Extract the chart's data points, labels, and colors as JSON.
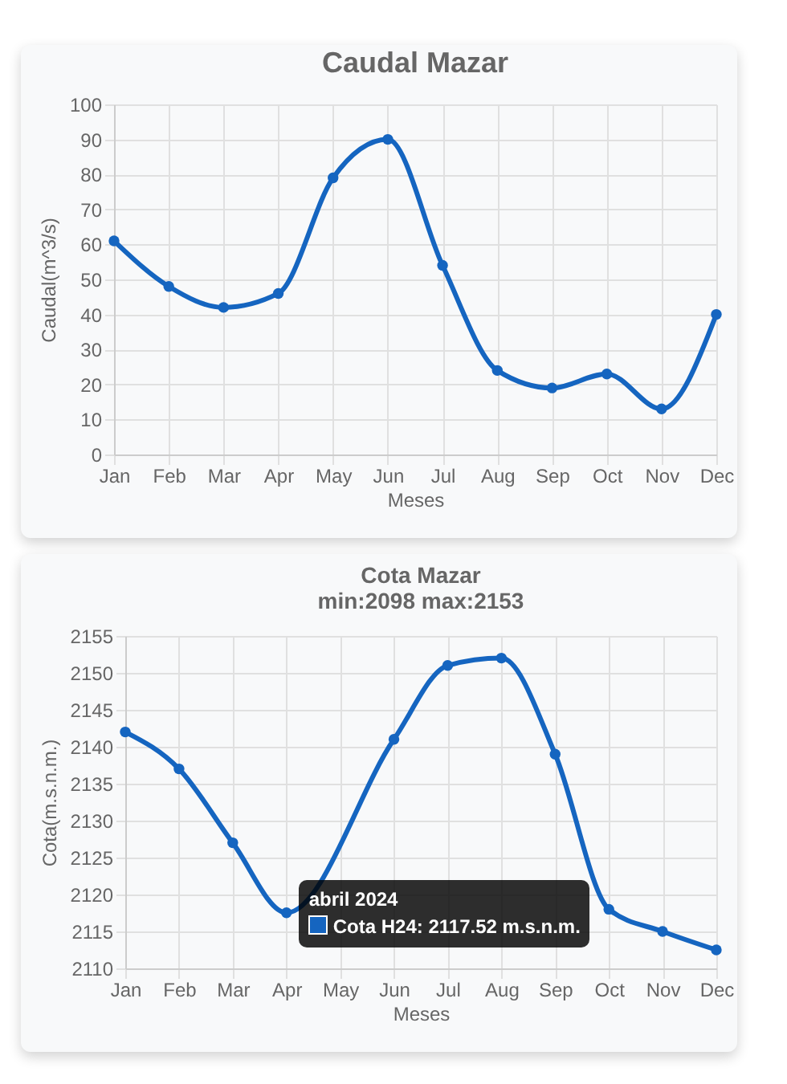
{
  "chart_data": [
    {
      "type": "line",
      "title": "Caudal Mazar",
      "xlabel": "Meses",
      "ylabel": "Caudal(m^3/s)",
      "categories": [
        "Jan",
        "Feb",
        "Mar",
        "Apr",
        "May",
        "Jun",
        "Jul",
        "Aug",
        "Sep",
        "Oct",
        "Nov",
        "Dec"
      ],
      "series": [
        {
          "color": "#1565c0",
          "values": [
            61,
            48,
            42,
            46,
            79,
            90,
            54,
            24,
            19,
            23,
            13,
            40
          ]
        }
      ],
      "ylim": [
        0,
        100
      ],
      "yticks": [
        0,
        10,
        20,
        30,
        40,
        50,
        60,
        70,
        80,
        90,
        100
      ],
      "grid": true,
      "marker": "circle",
      "line_style": "solid"
    },
    {
      "type": "line",
      "title": "Cota Mazar",
      "subtitle": "min:2098     max:2153",
      "xlabel": "Meses",
      "ylabel": "Cota(m.s.n.m.)",
      "categories": [
        "Jan",
        "Feb",
        "Mar",
        "Apr",
        "May",
        "Jun",
        "Jul",
        "Aug",
        "Sep",
        "Oct",
        "Nov",
        "Dec"
      ],
      "series": [
        {
          "color": "#1565c0",
          "values": [
            2142,
            2137,
            2127,
            2117.52,
            null,
            2141,
            2151,
            2152,
            2139,
            2118,
            2115,
            2112.5
          ]
        }
      ],
      "ylim": [
        2110,
        2155
      ],
      "yticks": [
        2110,
        2115,
        2120,
        2125,
        2130,
        2135,
        2140,
        2145,
        2150,
        2155
      ],
      "grid": true,
      "marker": "circle",
      "line_style": "solid",
      "annotations": [
        {
          "text": "abril 2024",
          "x": "Apr",
          "y": 2117.52
        },
        {
          "text": "Cota H24: 2117.52 m.s.n.m.",
          "x": "Apr",
          "y": 2117.52
        }
      ]
    }
  ]
}
